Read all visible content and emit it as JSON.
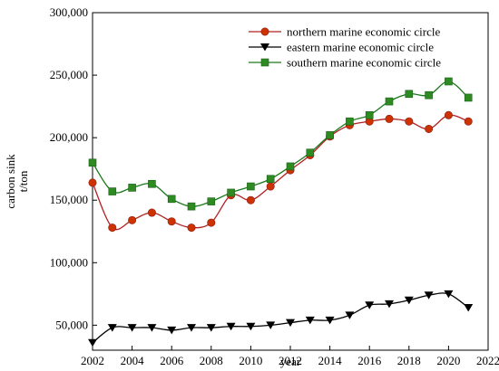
{
  "chart_data": {
    "type": "line",
    "title": "",
    "xlabel": "year",
    "ylabel_lines": [
      "carbon sink",
      "t/ton"
    ],
    "xlim": [
      2002,
      2022
    ],
    "ylim": [
      30000,
      300000
    ],
    "x_ticks": [
      2002,
      2004,
      2006,
      2008,
      2010,
      2012,
      2014,
      2016,
      2018,
      2020,
      2022
    ],
    "y_ticks": [
      50000,
      100000,
      150000,
      200000,
      250000,
      300000
    ],
    "y_tick_labels": [
      "50,000",
      "100,000",
      "150,000",
      "200,000",
      "250,000",
      "300,000"
    ],
    "grid": false,
    "legend_position": "top-right",
    "x": [
      2002,
      2003,
      2004,
      2005,
      2006,
      2007,
      2008,
      2009,
      2010,
      2011,
      2012,
      2013,
      2014,
      2015,
      2016,
      2017,
      2018,
      2019,
      2020,
      2021
    ],
    "series": [
      {
        "name": "northern marine economic circle",
        "color": "#b22222",
        "marker": "circle",
        "marker_color": "#cc3300",
        "values": [
          164000,
          128000,
          134000,
          140000,
          133000,
          128000,
          132000,
          154000,
          150000,
          161000,
          174000,
          186000,
          201000,
          210000,
          213000,
          215000,
          213000,
          207000,
          218000,
          213000
        ]
      },
      {
        "name": "eastern marine economic circle",
        "color": "#000000",
        "marker": "triangle-down",
        "marker_color": "#000000",
        "values": [
          36000,
          48000,
          48000,
          48000,
          46000,
          48000,
          48000,
          49000,
          49000,
          50000,
          52000,
          54000,
          54000,
          58000,
          66000,
          67000,
          70000,
          74000,
          75000,
          64000
        ]
      },
      {
        "name": "southern marine economic circle",
        "color": "#1a7a1a",
        "marker": "square",
        "marker_color": "#2e8b22",
        "values": [
          180000,
          157000,
          160000,
          163000,
          151000,
          145000,
          149000,
          156000,
          161000,
          167000,
          177000,
          188000,
          202000,
          213000,
          218000,
          229000,
          235000,
          234000,
          245000,
          232000
        ]
      }
    ]
  }
}
